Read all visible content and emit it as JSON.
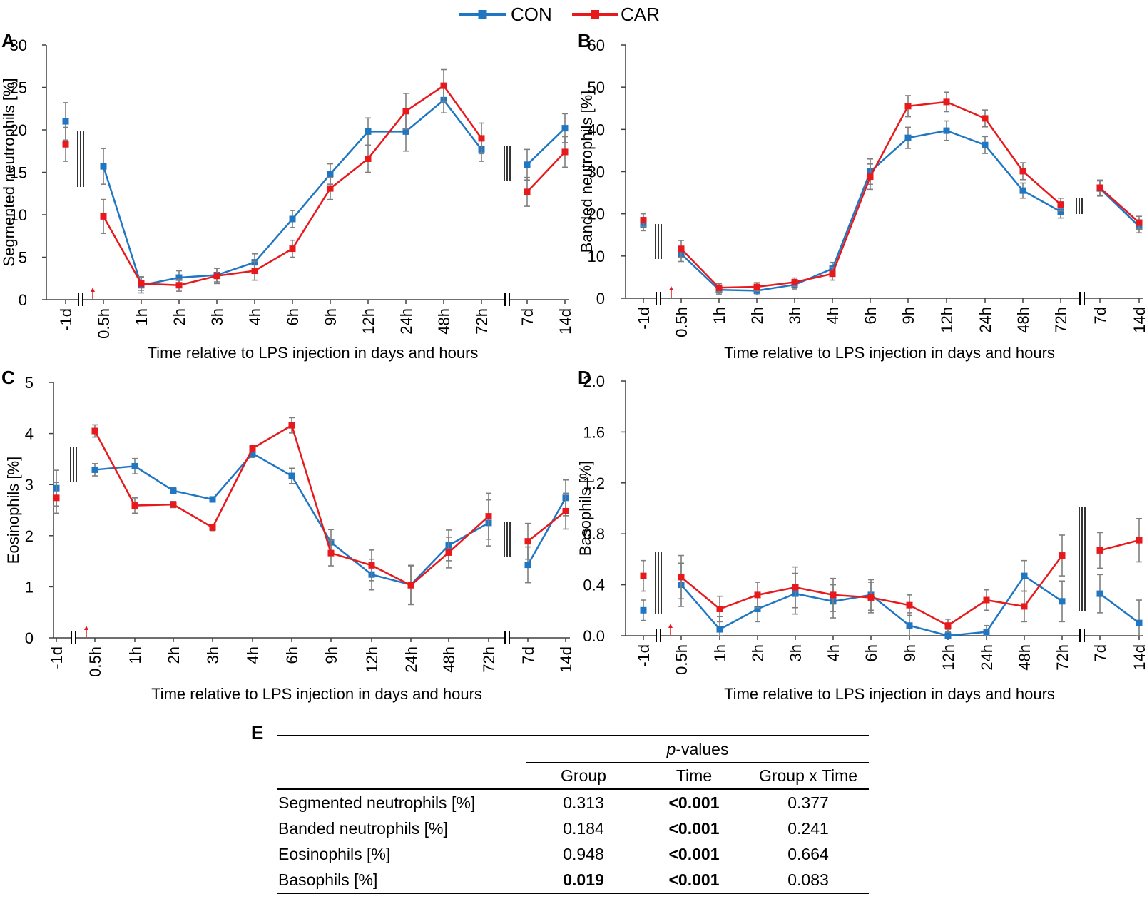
{
  "colors": {
    "con": "#1f77c4",
    "car": "#e8191d",
    "errorbar": "#7f7f7f",
    "axis": "#3f3f3f"
  },
  "legend": [
    {
      "name": "CON",
      "color": "#1f77c4"
    },
    {
      "name": "CAR",
      "color": "#e8191d"
    }
  ],
  "chart_data": [
    {
      "panel": "A",
      "type": "line",
      "ylabel": "Segmented neutrophils [%]",
      "xlabel": "Time relative to LPS injection in days and hours",
      "ylim": [
        0,
        30
      ],
      "yticks": [
        "0",
        "5",
        "10",
        "15",
        "20",
        "25",
        "30"
      ],
      "categories": [
        "-1d",
        "0.5h",
        "1h",
        "2h",
        "3h",
        "4h",
        "6h",
        "9h",
        "12h",
        "24h",
        "48h",
        "72h",
        "7d",
        "14d"
      ],
      "series": [
        {
          "name": "CON",
          "values": [
            21.0,
            15.7,
            1.7,
            2.6,
            2.9,
            4.4,
            9.5,
            14.8,
            19.8,
            19.8,
            23.5,
            17.7,
            15.9,
            20.2
          ],
          "errors": [
            2.2,
            2.1,
            0.9,
            0.8,
            0.8,
            1.0,
            1.0,
            1.2,
            1.6,
            2.3,
            1.5,
            1.4,
            1.8,
            1.7
          ]
        },
        {
          "name": "CAR",
          "values": [
            18.3,
            9.8,
            1.9,
            1.7,
            2.8,
            3.4,
            6.0,
            13.1,
            16.6,
            22.2,
            25.2,
            19.0,
            12.7,
            17.4
          ],
          "errors": [
            2.0,
            2.0,
            0.8,
            0.7,
            0.9,
            1.1,
            1.0,
            1.3,
            1.6,
            2.1,
            1.9,
            1.8,
            1.7,
            1.8
          ]
        }
      ]
    },
    {
      "panel": "B",
      "type": "line",
      "ylabel": "Banded neutrophils [%]",
      "xlabel": "Time relative to LPS injection in days and hours",
      "ylim": [
        0,
        60
      ],
      "yticks": [
        "0",
        "10",
        "20",
        "30",
        "40",
        "50",
        "60"
      ],
      "categories": [
        "-1d",
        "0.5h",
        "1h",
        "2h",
        "3h",
        "4h",
        "6h",
        "9h",
        "12h",
        "24h",
        "48h",
        "72h",
        "7d",
        "14d"
      ],
      "series": [
        {
          "name": "CON",
          "values": [
            17.5,
            10.5,
            2.0,
            1.8,
            3.2,
            7.0,
            30.0,
            38.0,
            39.7,
            36.3,
            25.5,
            20.5,
            26.0,
            17.0
          ],
          "errors": [
            1.5,
            1.8,
            1.0,
            1.0,
            1.0,
            1.5,
            3.0,
            2.5,
            2.3,
            2.0,
            1.8,
            1.5,
            1.8,
            1.5
          ]
        },
        {
          "name": "CAR",
          "values": [
            18.5,
            11.7,
            2.5,
            2.7,
            3.8,
            5.8,
            28.8,
            45.5,
            46.5,
            42.6,
            30.1,
            22.2,
            26.2,
            17.9
          ],
          "errors": [
            1.5,
            2.0,
            1.0,
            1.0,
            1.0,
            1.5,
            3.0,
            2.5,
            2.3,
            2.0,
            2.0,
            1.5,
            1.8,
            1.5
          ]
        }
      ]
    },
    {
      "panel": "C",
      "type": "line",
      "ylabel": "Eosinophils [%]",
      "xlabel": "Time relative to LPS injection in days and hours",
      "ylim": [
        0,
        5
      ],
      "yticks": [
        "0",
        "1",
        "2",
        "3",
        "4",
        "5"
      ],
      "categories": [
        "-1d",
        "0.5h",
        "1h",
        "2h",
        "3h",
        "4h",
        "6h",
        "9h",
        "12h",
        "24h",
        "48h",
        "72h",
        "7d",
        "14d"
      ],
      "series": [
        {
          "name": "CON",
          "values": [
            2.93,
            3.29,
            3.36,
            2.88,
            2.71,
            3.61,
            3.17,
            1.87,
            1.24,
            1.04,
            1.81,
            2.25,
            1.43,
            2.74
          ],
          "errors": [
            0.35,
            0.12,
            0.15,
            0.06,
            0.05,
            0.08,
            0.15,
            0.25,
            0.3,
            0.38,
            0.3,
            0.45,
            0.35,
            0.35
          ]
        },
        {
          "name": "CAR",
          "values": [
            2.74,
            4.05,
            2.59,
            2.61,
            2.16,
            3.71,
            4.16,
            1.66,
            1.42,
            1.03,
            1.67,
            2.38,
            1.89,
            2.48
          ],
          "errors": [
            0.3,
            0.12,
            0.15,
            0.06,
            0.06,
            0.06,
            0.15,
            0.25,
            0.3,
            0.38,
            0.3,
            0.45,
            0.35,
            0.35
          ]
        }
      ]
    },
    {
      "panel": "D",
      "type": "line",
      "ylabel": "Basophils [%]",
      "xlabel": "Time relative to LPS injection in days and hours",
      "ylim": [
        0,
        2.0
      ],
      "yticks": [
        "0.0",
        "0.4",
        "0.8",
        "1.2",
        "1.6",
        "2.0"
      ],
      "categories": [
        "-1d",
        "0.5h",
        "1h",
        "2h",
        "3h",
        "4h",
        "6h",
        "9h",
        "12h",
        "24h",
        "48h",
        "72h",
        "7d",
        "14d"
      ],
      "series": [
        {
          "name": "CON",
          "values": [
            0.2,
            0.4,
            0.05,
            0.21,
            0.33,
            0.27,
            0.32,
            0.08,
            0.0,
            0.03,
            0.47,
            0.27,
            0.33,
            0.1
          ],
          "errors": [
            0.08,
            0.17,
            0.1,
            0.1,
            0.16,
            0.13,
            0.12,
            0.1,
            0.05,
            0.05,
            0.12,
            0.16,
            0.15,
            0.18
          ]
        },
        {
          "name": "CAR",
          "values": [
            0.47,
            0.46,
            0.21,
            0.32,
            0.38,
            0.32,
            0.3,
            0.24,
            0.08,
            0.28,
            0.23,
            0.63,
            0.67,
            0.75
          ],
          "errors": [
            0.12,
            0.17,
            0.1,
            0.1,
            0.16,
            0.13,
            0.12,
            0.08,
            0.05,
            0.08,
            0.12,
            0.16,
            0.14,
            0.17
          ]
        }
      ]
    }
  ],
  "table": {
    "panel": "E",
    "super_header_italic": "p",
    "super_header_rest": "-values",
    "columns": [
      "Group",
      "Time",
      "Group x Time"
    ],
    "rows": [
      {
        "label": "Segmented neutrophils [%]",
        "group": "0.313",
        "time": "<0.001",
        "gxt": "0.377"
      },
      {
        "label": "Banded neutrophils [%]",
        "group": "0.184",
        "time": "<0.001",
        "gxt": "0.241"
      },
      {
        "label": "Eosinophils [%]",
        "group": "0.948",
        "time": "<0.001",
        "gxt": "0.664"
      },
      {
        "label": "Basophils [%]",
        "group": "0.019",
        "time": "<0.001",
        "gxt": "0.083"
      }
    ]
  }
}
